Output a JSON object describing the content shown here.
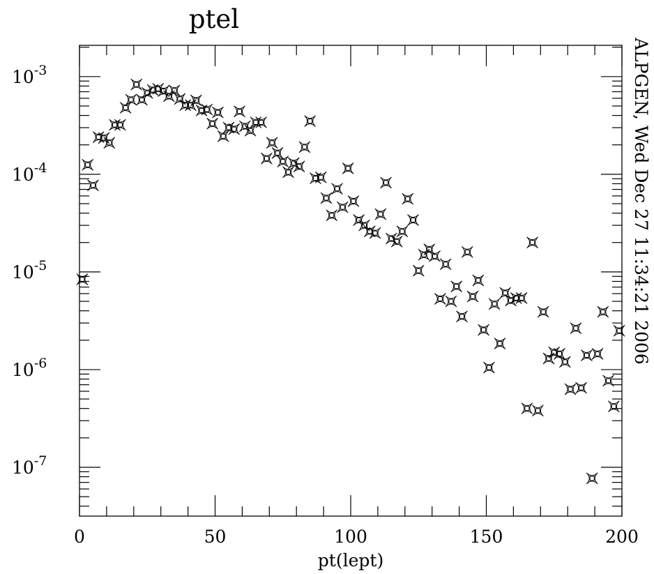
{
  "chart_data": {
    "type": "scatter",
    "title": "ptel",
    "xlabel": "pt(lept)",
    "ylabel": "",
    "xlim": [
      0,
      200
    ],
    "ylog": true,
    "ylim_log10": [
      -7.5,
      -2.68
    ],
    "x_ticks": [
      0,
      50,
      100,
      150,
      200
    ],
    "y_tick_exponents": [
      -3,
      -4,
      -5,
      -6,
      -7
    ],
    "y_tick_base": "10",
    "grid": false,
    "marker": "square-star",
    "side_text": "ALPGEN, Wed Dec 27 11:34:21 2006",
    "x": [
      1,
      3,
      5,
      7,
      9,
      11,
      13,
      15,
      17,
      19,
      21,
      23,
      25,
      27,
      29,
      31,
      33,
      35,
      37,
      39,
      41,
      43,
      45,
      47,
      49,
      51,
      53,
      55,
      57,
      59,
      61,
      63,
      65,
      67,
      69,
      71,
      73,
      75,
      77,
      79,
      81,
      83,
      85,
      87,
      89,
      91,
      93,
      95,
      97,
      99,
      101,
      103,
      105,
      107,
      109,
      111,
      113,
      115,
      117,
      119,
      121,
      123,
      125,
      127,
      129,
      131,
      133,
      135,
      137,
      139,
      141,
      143,
      145,
      147,
      149,
      151,
      153,
      155,
      157,
      159,
      161,
      163,
      165,
      167,
      169,
      171,
      173,
      175,
      177,
      179,
      181,
      183,
      185,
      187,
      189,
      191,
      193,
      195,
      197,
      199
    ],
    "y": [
      8.4e-06,
      0.000125,
      7.7e-05,
      0.00024,
      0.000235,
      0.00021,
      0.00032,
      0.00032,
      0.00048,
      0.00058,
      0.00083,
      0.00058,
      0.00068,
      0.00073,
      0.00075,
      0.00071,
      0.00063,
      0.00072,
      0.00059,
      0.00051,
      0.00051,
      0.00057,
      0.00045,
      0.00046,
      0.00033,
      0.00043,
      0.000245,
      0.0003,
      0.00029,
      0.00044,
      0.00031,
      0.00028,
      0.00034,
      0.00034,
      0.000145,
      0.00021,
      0.000165,
      0.000135,
      0.000105,
      0.00013,
      0.00012,
      0.00019,
      0.00035,
      9.1e-05,
      9.3e-05,
      5.7e-05,
      3.8e-05,
      7.1e-05,
      4.6e-05,
      0.000115,
      5.3e-05,
      3.4e-05,
      3e-05,
      2.6e-05,
      2.5e-05,
      3.9e-05,
      8.2e-05,
      2.2e-05,
      2.05e-05,
      2.6e-05,
      5.6e-05,
      3.4e-05,
      1.03e-05,
      1.5e-05,
      1.7e-05,
      1.45e-05,
      5.3e-06,
      1.2e-05,
      5e-06,
      7.1e-06,
      3.5e-06,
      1.6e-05,
      5.6e-06,
      8.2e-06,
      2.55e-06,
      1.05e-06,
      4.7e-06,
      1.85e-06,
      6.1e-06,
      5.1e-06,
      5.4e-06,
      5.4e-06,
      4e-07,
      2e-05,
      3.8e-07,
      3.9e-06,
      1.3e-06,
      1.5e-06,
      1.45e-06,
      1.2e-06,
      6.3e-07,
      2.65e-06,
      6.5e-07,
      1.4e-06,
      7.7e-08,
      1.45e-06,
      3.9e-06,
      7.7e-07,
      4.2e-07,
      2.5e-06
    ]
  }
}
